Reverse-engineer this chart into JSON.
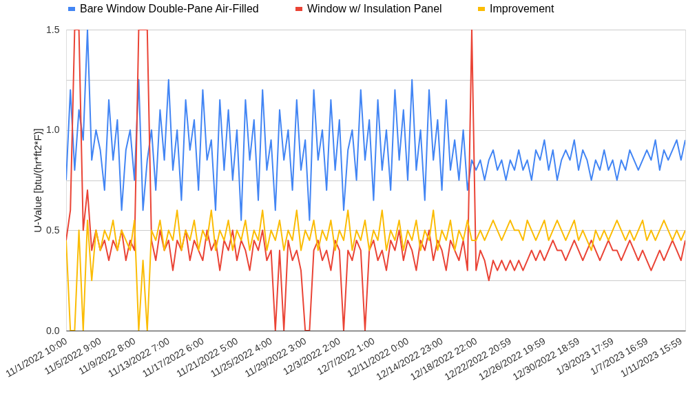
{
  "chart_data": {
    "type": "line",
    "ylabel": "U-Value [btu/(hr*ft2*F)]",
    "categories": [
      "11/1/2022 10:00",
      null,
      null,
      null,
      null,
      null,
      null,
      null,
      "11/5/2022 9:00",
      null,
      null,
      null,
      null,
      null,
      null,
      null,
      "11/9/2022 8:00",
      null,
      null,
      null,
      null,
      null,
      null,
      null,
      "11/13/2022 7:00",
      null,
      null,
      null,
      null,
      null,
      null,
      null,
      "11/17/2022 6:00",
      null,
      null,
      null,
      null,
      null,
      null,
      null,
      "11/21/2022 5:00",
      null,
      null,
      null,
      null,
      null,
      null,
      null,
      "11/25/2022 4:00",
      null,
      null,
      null,
      null,
      null,
      null,
      null,
      "11/29/2022 3:00",
      null,
      null,
      null,
      null,
      null,
      null,
      null,
      "12/3/2022 2:00",
      null,
      null,
      null,
      null,
      null,
      null,
      null,
      "12/7/2022 1:00",
      null,
      null,
      null,
      null,
      null,
      null,
      null,
      "12/11/2022 0:00",
      null,
      null,
      null,
      null,
      null,
      null,
      null,
      "12/14/2022 23:00",
      null,
      null,
      null,
      null,
      null,
      null,
      null,
      "12/18/2022 22:00",
      null,
      null,
      null,
      null,
      null,
      null,
      null,
      "12/22/2022 20:59",
      null,
      null,
      null,
      null,
      null,
      null,
      null,
      "12/26/2022 19:59",
      null,
      null,
      null,
      null,
      null,
      null,
      null,
      "12/30/2022 18:59",
      null,
      null,
      null,
      null,
      null,
      null,
      null,
      "1/3/2023 17:59",
      null,
      null,
      null,
      null,
      null,
      null,
      null,
      "1/7/2023 16:59",
      null,
      null,
      null,
      null,
      null,
      null,
      null,
      "1/11/2023 15:59",
      null
    ],
    "ylim": [
      0,
      1.5
    ],
    "yticks": [
      {
        "value": 0,
        "label": "0.0"
      },
      {
        "value": 0.25,
        "label": null
      },
      {
        "value": 0.5,
        "label": "0.5"
      },
      {
        "value": 0.75,
        "label": null
      },
      {
        "value": 1.0,
        "label": "1.0"
      },
      {
        "value": 1.25,
        "label": null
      },
      {
        "value": 1.5,
        "label": "1.5"
      }
    ],
    "grid": "y",
    "legend": "top",
    "marker": "none",
    "line_style": "solid",
    "series": [
      {
        "name": "Bare Window Double-Pane Air-Filled",
        "color": "#4285f4",
        "values": [
          0.75,
          1.2,
          0.8,
          1.1,
          0.95,
          1.5,
          0.85,
          1.0,
          0.9,
          0.7,
          1.15,
          0.85,
          1.05,
          0.6,
          0.9,
          1.0,
          0.75,
          1.25,
          0.6,
          0.85,
          1.0,
          0.7,
          1.1,
          0.85,
          1.25,
          0.8,
          1.0,
          0.65,
          1.15,
          0.9,
          1.05,
          0.7,
          1.2,
          0.85,
          0.95,
          0.6,
          1.15,
          0.8,
          1.1,
          0.75,
          1.0,
          0.55,
          1.15,
          0.85,
          1.05,
          0.65,
          1.2,
          0.8,
          0.95,
          0.6,
          1.1,
          0.85,
          1.0,
          0.7,
          1.15,
          0.8,
          0.95,
          0.55,
          1.2,
          0.85,
          1.0,
          0.7,
          1.15,
          0.8,
          1.05,
          0.6,
          0.9,
          1.0,
          0.75,
          1.2,
          0.85,
          1.05,
          0.65,
          1.15,
          0.8,
          1.0,
          0.7,
          1.2,
          0.85,
          1.1,
          0.75,
          1.25,
          0.8,
          1.0,
          0.65,
          1.2,
          0.85,
          1.05,
          0.7,
          1.15,
          0.8,
          0.95,
          0.75,
          1.0,
          0.7,
          0.85,
          0.8,
          0.85,
          0.75,
          0.85,
          0.9,
          0.8,
          0.85,
          0.75,
          0.85,
          0.8,
          0.9,
          0.8,
          0.85,
          0.75,
          0.9,
          0.85,
          0.95,
          0.8,
          0.9,
          0.75,
          0.85,
          0.9,
          0.85,
          0.95,
          0.8,
          0.9,
          0.85,
          0.75,
          0.85,
          0.8,
          0.9,
          0.8,
          0.85,
          0.75,
          0.85,
          0.8,
          0.9,
          0.85,
          0.8,
          0.85,
          0.9,
          0.85,
          0.95,
          0.8,
          0.9,
          0.85,
          0.9,
          0.95,
          0.85,
          0.95
        ]
      },
      {
        "name": "Window w/ Insulation Panel",
        "color": "#ea4335",
        "values": [
          0.45,
          0.6,
          1.5,
          1.5,
          0.5,
          0.7,
          0.4,
          0.5,
          0.4,
          0.45,
          0.35,
          0.45,
          0.4,
          0.5,
          0.35,
          0.45,
          0.4,
          1.5,
          1.5,
          1.5,
          0.45,
          0.35,
          0.5,
          0.4,
          0.45,
          0.3,
          0.45,
          0.4,
          0.5,
          0.35,
          0.45,
          0.4,
          0.35,
          0.5,
          0.4,
          0.45,
          0.3,
          0.45,
          0.4,
          0.5,
          0.35,
          0.45,
          0.4,
          0.3,
          0.45,
          0.4,
          0.5,
          0.35,
          0.4,
          0.0,
          0.4,
          0.0,
          0.45,
          0.35,
          0.4,
          0.3,
          0.0,
          0.0,
          0.4,
          0.45,
          0.35,
          0.4,
          0.3,
          0.45,
          0.4,
          0.0,
          0.4,
          0.35,
          0.45,
          0.4,
          0.0,
          0.4,
          0.45,
          0.35,
          0.4,
          0.3,
          0.45,
          0.4,
          0.5,
          0.35,
          0.45,
          0.4,
          0.3,
          0.45,
          0.4,
          0.5,
          0.35,
          0.45,
          0.4,
          0.3,
          0.45,
          0.4,
          0.35,
          0.45,
          0.3,
          1.5,
          0.3,
          0.4,
          0.35,
          0.25,
          0.35,
          0.3,
          0.35,
          0.3,
          0.35,
          0.3,
          0.35,
          0.3,
          0.35,
          0.4,
          0.35,
          0.4,
          0.35,
          0.4,
          0.45,
          0.4,
          0.4,
          0.35,
          0.4,
          0.45,
          0.4,
          0.35,
          0.4,
          0.45,
          0.4,
          0.35,
          0.4,
          0.45,
          0.4,
          0.4,
          0.35,
          0.4,
          0.45,
          0.4,
          0.35,
          0.4,
          0.35,
          0.3,
          0.35,
          0.4,
          0.35,
          0.4,
          0.45,
          0.4,
          0.35,
          0.45
        ]
      },
      {
        "name": "Improvement",
        "color": "#fbbc04",
        "values": [
          0.45,
          0.0,
          0.0,
          0.5,
          0.0,
          0.55,
          0.25,
          0.5,
          0.4,
          0.5,
          0.45,
          0.55,
          0.4,
          0.5,
          0.45,
          0.4,
          0.55,
          0.0,
          0.35,
          0.0,
          0.5,
          0.45,
          0.55,
          0.4,
          0.5,
          0.45,
          0.6,
          0.4,
          0.5,
          0.45,
          0.55,
          0.4,
          0.5,
          0.45,
          0.6,
          0.4,
          0.5,
          0.45,
          0.55,
          0.4,
          0.5,
          0.45,
          0.55,
          0.4,
          0.5,
          0.45,
          0.6,
          0.4,
          0.5,
          0.45,
          0.55,
          0.4,
          0.5,
          0.45,
          0.6,
          0.4,
          0.5,
          0.45,
          0.55,
          0.4,
          0.5,
          0.45,
          0.55,
          0.4,
          0.5,
          0.45,
          0.6,
          0.4,
          0.5,
          0.45,
          0.55,
          0.4,
          0.5,
          0.45,
          0.6,
          0.4,
          0.5,
          0.45,
          0.55,
          0.4,
          0.5,
          0.45,
          0.55,
          0.4,
          0.5,
          0.45,
          0.6,
          0.4,
          0.5,
          0.45,
          0.55,
          0.4,
          0.5,
          0.45,
          0.55,
          0.45,
          0.45,
          0.5,
          0.45,
          0.5,
          0.55,
          0.5,
          0.45,
          0.5,
          0.55,
          0.5,
          0.5,
          0.45,
          0.55,
          0.5,
          0.45,
          0.5,
          0.55,
          0.45,
          0.5,
          0.55,
          0.5,
          0.45,
          0.5,
          0.55,
          0.45,
          0.5,
          0.45,
          0.4,
          0.5,
          0.45,
          0.5,
          0.45,
          0.5,
          0.55,
          0.5,
          0.45,
          0.5,
          0.45,
          0.5,
          0.55,
          0.45,
          0.5,
          0.45,
          0.5,
          0.55,
          0.5,
          0.45,
          0.5,
          0.45,
          0.5
        ]
      }
    ]
  }
}
